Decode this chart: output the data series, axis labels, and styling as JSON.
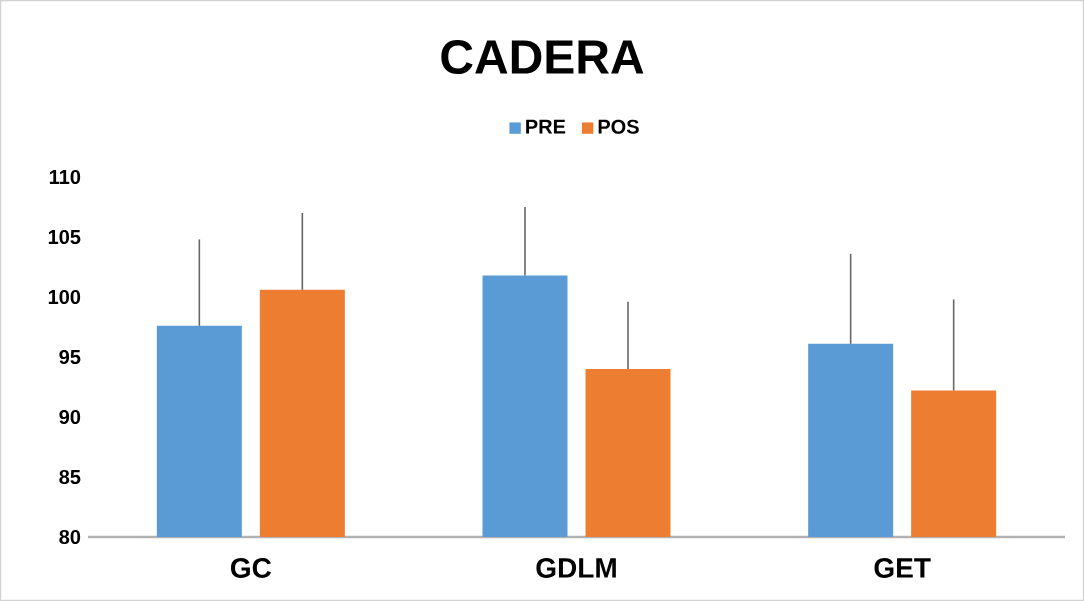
{
  "chart_data": {
    "type": "bar",
    "title": "CADERA",
    "categories": [
      "GC",
      "GDLM",
      "GET"
    ],
    "series": [
      {
        "name": "PRE",
        "color": "#5b9bd5",
        "values": [
          97.6,
          101.8,
          96.1
        ],
        "errors": [
          [
            97.6,
            104.8
          ],
          [
            101.8,
            107.5
          ],
          [
            96.1,
            103.6
          ]
        ]
      },
      {
        "name": "POS",
        "color": "#ed7d31",
        "values": [
          100.6,
          94.0,
          92.2
        ],
        "errors": [
          [
            100.6,
            107.0
          ],
          [
            94.0,
            99.6
          ],
          [
            92.2,
            99.8
          ]
        ]
      }
    ],
    "ylim": [
      80,
      110
    ],
    "yticks": [
      80,
      85,
      90,
      95,
      100,
      105,
      110
    ],
    "grid": false,
    "legend": "top"
  }
}
